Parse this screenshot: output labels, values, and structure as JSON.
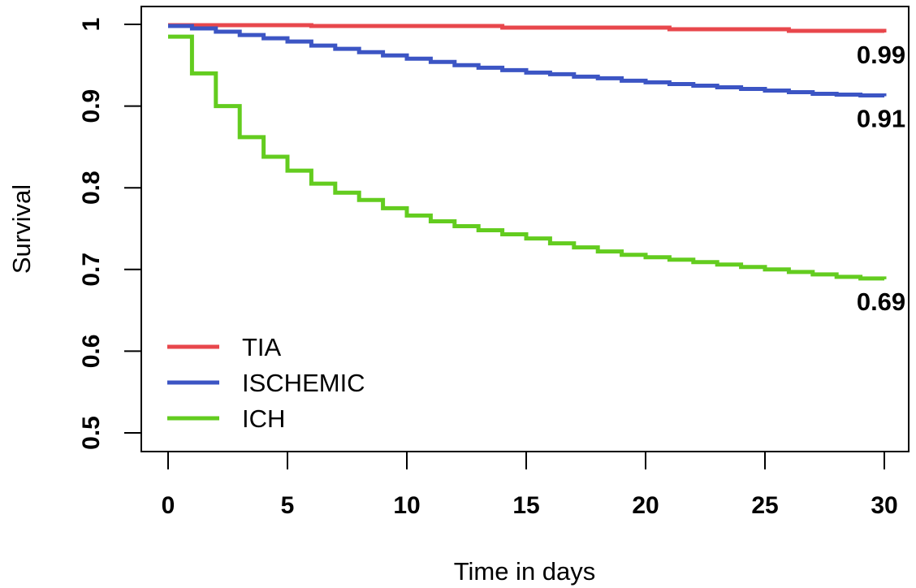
{
  "chart_data": {
    "type": "line",
    "title": "",
    "xlabel": "Time in days",
    "ylabel": "Survival",
    "xlim": [
      0,
      30
    ],
    "ylim": [
      0.5,
      1.0
    ],
    "x_ticks": [
      0,
      5,
      10,
      15,
      20,
      25,
      30
    ],
    "x_tick_labels": [
      "0",
      "5",
      "10",
      "15",
      "20",
      "25",
      "30"
    ],
    "y_ticks": [
      0.5,
      0.6,
      0.7,
      0.8,
      0.9,
      1.0
    ],
    "y_tick_labels": [
      "0.5",
      "0.6",
      "0.7",
      "0.8",
      "0.9",
      "1"
    ],
    "grid": false,
    "legend_position": "bottom-left",
    "step": true,
    "series": [
      {
        "name": "TIA",
        "color": "#e8474c",
        "end_label": "0.99",
        "x": [
          0,
          6,
          14,
          21,
          26,
          30
        ],
        "y": [
          0.999,
          0.998,
          0.996,
          0.994,
          0.992,
          0.99
        ]
      },
      {
        "name": "ISCHEMIC",
        "color": "#3c55c4",
        "end_label": "0.91",
        "x": [
          0,
          1,
          2,
          3,
          4,
          5,
          6,
          7,
          8,
          9,
          10,
          11,
          12,
          13,
          14,
          15,
          16,
          17,
          18,
          19,
          20,
          21,
          22,
          23,
          24,
          25,
          26,
          27,
          28,
          29,
          30
        ],
        "y": [
          0.998,
          0.995,
          0.991,
          0.987,
          0.983,
          0.979,
          0.974,
          0.97,
          0.966,
          0.962,
          0.958,
          0.954,
          0.95,
          0.947,
          0.944,
          0.941,
          0.939,
          0.936,
          0.934,
          0.931,
          0.929,
          0.927,
          0.925,
          0.923,
          0.921,
          0.919,
          0.917,
          0.915,
          0.914,
          0.913,
          0.912
        ]
      },
      {
        "name": "ICH",
        "color": "#63cc1f",
        "end_label": "0.69",
        "x": [
          0,
          1,
          2,
          3,
          4,
          5,
          6,
          7,
          8,
          9,
          10,
          11,
          12,
          13,
          14,
          15,
          16,
          17,
          18,
          19,
          20,
          21,
          22,
          23,
          24,
          25,
          26,
          27,
          28,
          29,
          30
        ],
        "y": [
          0.985,
          0.94,
          0.9,
          0.862,
          0.838,
          0.821,
          0.805,
          0.794,
          0.785,
          0.775,
          0.766,
          0.759,
          0.753,
          0.748,
          0.743,
          0.738,
          0.732,
          0.727,
          0.722,
          0.718,
          0.715,
          0.712,
          0.709,
          0.706,
          0.703,
          0.7,
          0.697,
          0.694,
          0.691,
          0.689,
          0.688
        ]
      }
    ]
  }
}
